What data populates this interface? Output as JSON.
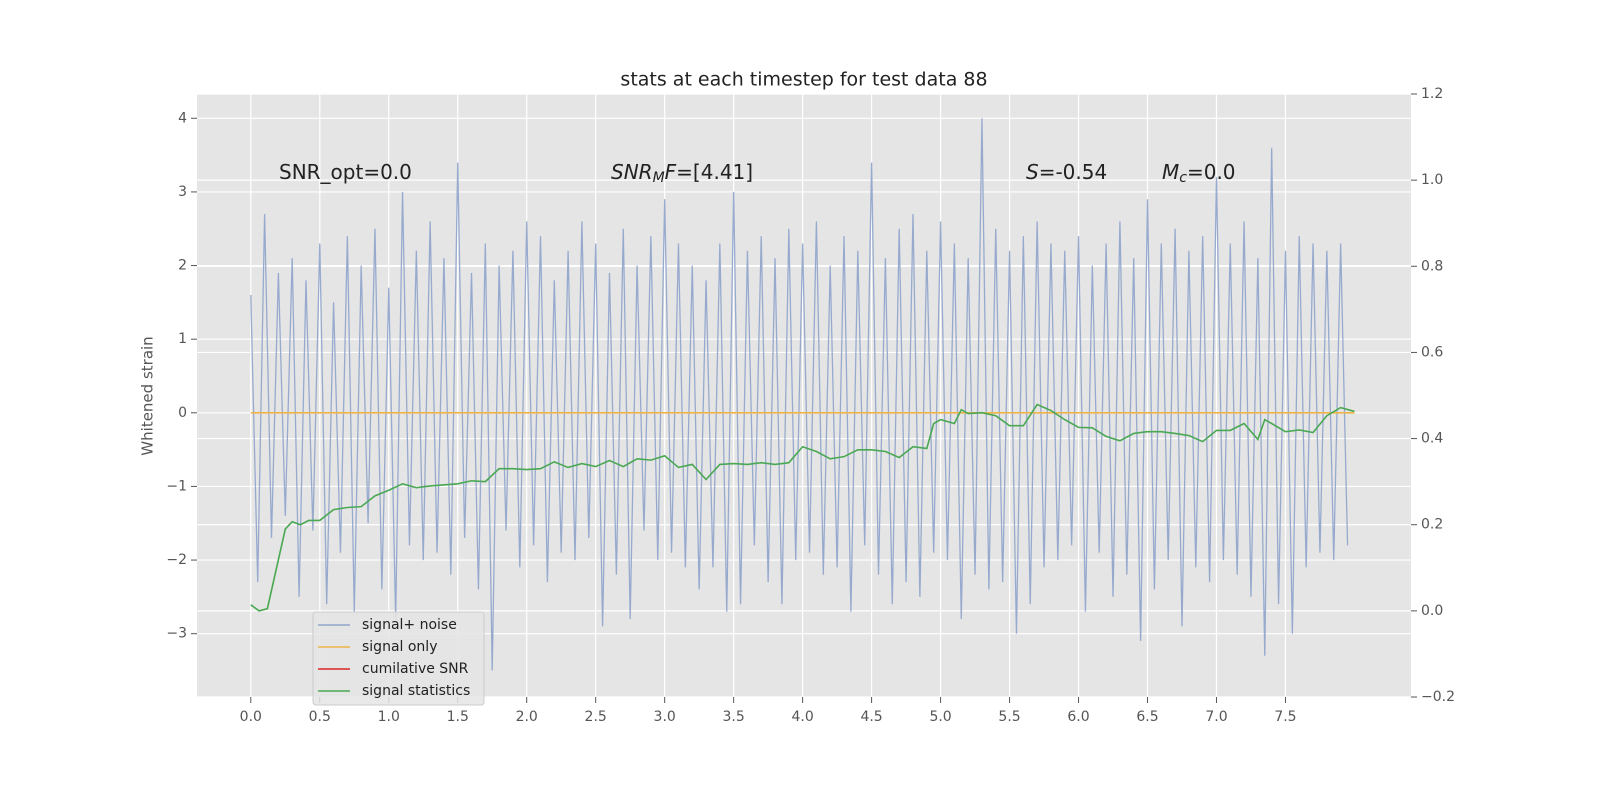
{
  "chart_data": {
    "type": "line",
    "title": "stats at each timestep for test data 88",
    "ylabel": "Whitened strain",
    "xlim": [
      -0.39,
      8.41
    ],
    "ylim": [
      -3.86,
      4.33
    ],
    "y2lim": [
      -0.2,
      1.2
    ],
    "xticks": [
      {
        "value": 0,
        "label": "0.0"
      },
      {
        "value": 0.5,
        "label": "0.5"
      },
      {
        "value": 1,
        "label": "1.0"
      },
      {
        "value": 1.5,
        "label": "1.5"
      },
      {
        "value": 2,
        "label": "2.0"
      },
      {
        "value": 2.5,
        "label": "2.5"
      },
      {
        "value": 3,
        "label": "3.0"
      },
      {
        "value": 3.5,
        "label": "3.5"
      },
      {
        "value": 4,
        "label": "4.0"
      },
      {
        "value": 4.5,
        "label": "4.5"
      },
      {
        "value": 5,
        "label": "5.0"
      },
      {
        "value": 5.5,
        "label": "5.5"
      },
      {
        "value": 6,
        "label": "6.0"
      },
      {
        "value": 6.5,
        "label": "6.5"
      },
      {
        "value": 7,
        "label": "7.0"
      },
      {
        "value": 7.5,
        "label": "7.5"
      }
    ],
    "yticks": [
      {
        "value": -3,
        "label": "−3"
      },
      {
        "value": -2,
        "label": "−2"
      },
      {
        "value": -1,
        "label": "−1"
      },
      0,
      1,
      2,
      3,
      4
    ],
    "y2ticks": [
      {
        "value": -0.2,
        "label": "−0.2"
      },
      {
        "value": 0,
        "label": "0.0"
      },
      {
        "value": 0.2,
        "label": "0.2"
      },
      {
        "value": 0.4,
        "label": "0.4"
      },
      {
        "value": 0.6,
        "label": "0.6"
      },
      {
        "value": 0.8,
        "label": "0.8"
      },
      {
        "value": 1,
        "label": "1.0"
      },
      {
        "value": 1.2,
        "label": "1.2"
      }
    ],
    "grid": true,
    "legend": "lower left",
    "annotations": [
      {
        "parts": [
          {
            "text": "SNR_opt=0.0",
            "style": "normal"
          }
        ]
      },
      {
        "parts": [
          {
            "text": "SNR",
            "style": "italic"
          },
          {
            "text": "M",
            "style": "sub"
          },
          {
            "text": "F",
            "style": "italic"
          },
          {
            "text": "=[4.41]",
            "style": "normal"
          }
        ]
      },
      {
        "parts": [
          {
            "text": "S",
            "style": "italic"
          },
          {
            "text": "=-0.54",
            "style": "normal"
          }
        ]
      },
      {
        "parts": [
          {
            "text": "M",
            "style": "italic"
          },
          {
            "text": "c",
            "style": "sub"
          },
          {
            "text": "=0.0",
            "style": "normal"
          }
        ]
      }
    ],
    "series": [
      {
        "name": "signal+ noise",
        "color": "#92a7cc",
        "x": [
          0,
          0.05,
          0.1,
          0.15,
          0.2,
          0.25,
          0.3,
          0.35,
          0.4,
          0.45,
          0.5,
          0.55,
          0.6,
          0.65,
          0.7,
          0.75,
          0.8,
          0.85,
          0.9,
          0.95,
          1,
          1.05,
          1.1,
          1.15,
          1.2,
          1.25,
          1.3,
          1.35,
          1.4,
          1.45,
          1.5,
          1.55,
          1.6,
          1.65,
          1.7,
          1.75,
          1.8,
          1.85,
          1.9,
          1.95,
          2,
          2.05,
          2.1,
          2.15,
          2.2,
          2.25,
          2.3,
          2.35,
          2.4,
          2.45,
          2.5,
          2.55,
          2.6,
          2.65,
          2.7,
          2.75,
          2.8,
          2.85,
          2.9,
          2.95,
          3,
          3.05,
          3.1,
          3.15,
          3.2,
          3.25,
          3.3,
          3.35,
          3.4,
          3.45,
          3.5,
          3.55,
          3.6,
          3.65,
          3.7,
          3.75,
          3.8,
          3.85,
          3.9,
          3.95,
          4,
          4.05,
          4.1,
          4.15,
          4.2,
          4.25,
          4.3,
          4.35,
          4.4,
          4.45,
          4.5,
          4.55,
          4.6,
          4.65,
          4.7,
          4.75,
          4.8,
          4.85,
          4.9,
          4.95,
          5,
          5.05,
          5.1,
          5.15,
          5.2,
          5.25,
          5.3,
          5.35,
          5.4,
          5.45,
          5.5,
          5.55,
          5.6,
          5.65,
          5.7,
          5.75,
          5.8,
          5.85,
          5.9,
          5.95,
          6,
          6.05,
          6.1,
          6.15,
          6.2,
          6.25,
          6.3,
          6.35,
          6.4,
          6.45,
          6.5,
          6.55,
          6.6,
          6.65,
          6.7,
          6.75,
          6.8,
          6.85,
          6.9,
          6.95,
          7,
          7.05,
          7.1,
          7.15,
          7.2,
          7.25,
          7.3,
          7.35,
          7.4,
          7.45,
          7.5,
          7.55,
          7.6,
          7.65,
          7.7,
          7.75,
          7.8,
          7.85,
          7.9,
          7.95
        ],
        "values": [
          1.6,
          -2.3,
          2.7,
          -1.7,
          1.9,
          -1.4,
          2.1,
          -2.5,
          1.8,
          -1.6,
          2.3,
          -2.6,
          1.5,
          -1.9,
          2.4,
          -2.7,
          2.0,
          -1.5,
          2.5,
          -2.4,
          1.7,
          -2.8,
          3.0,
          -1.8,
          2.2,
          -2.0,
          2.6,
          -1.9,
          2.1,
          -2.2,
          3.4,
          -1.7,
          1.9,
          -2.4,
          2.3,
          -3.5,
          2.0,
          -1.6,
          2.2,
          -2.1,
          2.6,
          -1.8,
          2.4,
          -2.3,
          1.8,
          -1.9,
          2.2,
          -2.0,
          2.6,
          -1.7,
          2.3,
          -2.9,
          1.9,
          -2.2,
          2.5,
          -2.8,
          2.0,
          -1.6,
          2.4,
          -2.0,
          2.9,
          -1.9,
          2.3,
          -2.1,
          2.0,
          -2.4,
          1.8,
          -2.1,
          2.3,
          -2.7,
          3.0,
          -2.6,
          2.2,
          -1.8,
          2.4,
          -2.3,
          2.1,
          -2.6,
          2.5,
          -2.0,
          2.3,
          -1.9,
          2.6,
          -2.2,
          2.0,
          -2.1,
          2.4,
          -2.7,
          2.2,
          -1.8,
          3.4,
          -2.2,
          2.1,
          -2.6,
          2.5,
          -2.3,
          2.7,
          -2.5,
          2.2,
          -1.9,
          2.6,
          -2.0,
          2.3,
          -2.8,
          2.1,
          -2.2,
          4.0,
          -2.4,
          2.5,
          -2.3,
          2.2,
          -3.0,
          2.4,
          -2.6,
          2.6,
          -2.1,
          2.3,
          -2.0,
          2.2,
          -1.8,
          2.4,
          -2.7,
          2.0,
          -1.9,
          2.3,
          -2.5,
          2.6,
          -2.2,
          2.1,
          -3.1,
          2.9,
          -2.4,
          2.3,
          -2.0,
          2.5,
          -2.9,
          2.2,
          -2.1,
          2.4,
          -2.3,
          3.2,
          -2.0,
          2.3,
          -2.2,
          2.6,
          -2.5,
          2.1,
          -3.3,
          3.6,
          -2.6,
          2.2,
          -3.0,
          2.4,
          -2.1,
          2.3,
          -1.9,
          2.2,
          -2.0,
          2.3,
          -1.8
        ]
      },
      {
        "name": "signal only",
        "color": "#f0b449",
        "x": [
          0,
          8
        ],
        "values": [
          0,
          0
        ]
      },
      {
        "name": "cumilative SNR",
        "color": "#d62728",
        "x": [],
        "values": []
      },
      {
        "name": "signal statistics",
        "color": "#4aa853",
        "axis": "y2",
        "x": [
          0,
          0.06,
          0.12,
          0.25,
          0.3,
          0.36,
          0.42,
          0.5,
          0.6,
          0.7,
          0.8,
          0.9,
          1,
          1.1,
          1.2,
          1.3,
          1.5,
          1.6,
          1.7,
          1.8,
          1.9,
          2,
          2.1,
          2.2,
          2.3,
          2.4,
          2.5,
          2.6,
          2.7,
          2.8,
          2.9,
          3,
          3.1,
          3.2,
          3.3,
          3.4,
          3.5,
          3.6,
          3.7,
          3.8,
          3.9,
          4,
          4.1,
          4.2,
          4.3,
          4.4,
          4.5,
          4.6,
          4.7,
          4.8,
          4.9,
          4.95,
          5,
          5.1,
          5.15,
          5.2,
          5.3,
          5.4,
          5.5,
          5.6,
          5.7,
          5.8,
          5.9,
          6,
          6.1,
          6.2,
          6.3,
          6.4,
          6.5,
          6.6,
          6.7,
          6.8,
          6.9,
          7,
          7.1,
          7.2,
          7.3,
          7.35,
          7.4,
          7.5,
          7.6,
          7.7,
          7.8,
          7.9,
          8
        ],
        "values": [
          0.014,
          0.0,
          0.005,
          0.19,
          0.207,
          0.2,
          0.21,
          0.21,
          0.235,
          0.24,
          0.242,
          0.267,
          0.28,
          0.295,
          0.286,
          0.29,
          0.295,
          0.302,
          0.3,
          0.33,
          0.33,
          0.328,
          0.33,
          0.346,
          0.333,
          0.342,
          0.335,
          0.349,
          0.335,
          0.353,
          0.35,
          0.36,
          0.333,
          0.34,
          0.305,
          0.34,
          0.342,
          0.34,
          0.344,
          0.34,
          0.344,
          0.381,
          0.37,
          0.353,
          0.358,
          0.374,
          0.374,
          0.37,
          0.356,
          0.381,
          0.377,
          0.435,
          0.444,
          0.435,
          0.467,
          0.458,
          0.46,
          0.453,
          0.43,
          0.43,
          0.479,
          0.465,
          0.444,
          0.426,
          0.425,
          0.405,
          0.395,
          0.412,
          0.416,
          0.416,
          0.412,
          0.407,
          0.393,
          0.419,
          0.419,
          0.435,
          0.398,
          0.444,
          0.435,
          0.416,
          0.42,
          0.414,
          0.453,
          0.472,
          0.463
        ]
      }
    ]
  }
}
